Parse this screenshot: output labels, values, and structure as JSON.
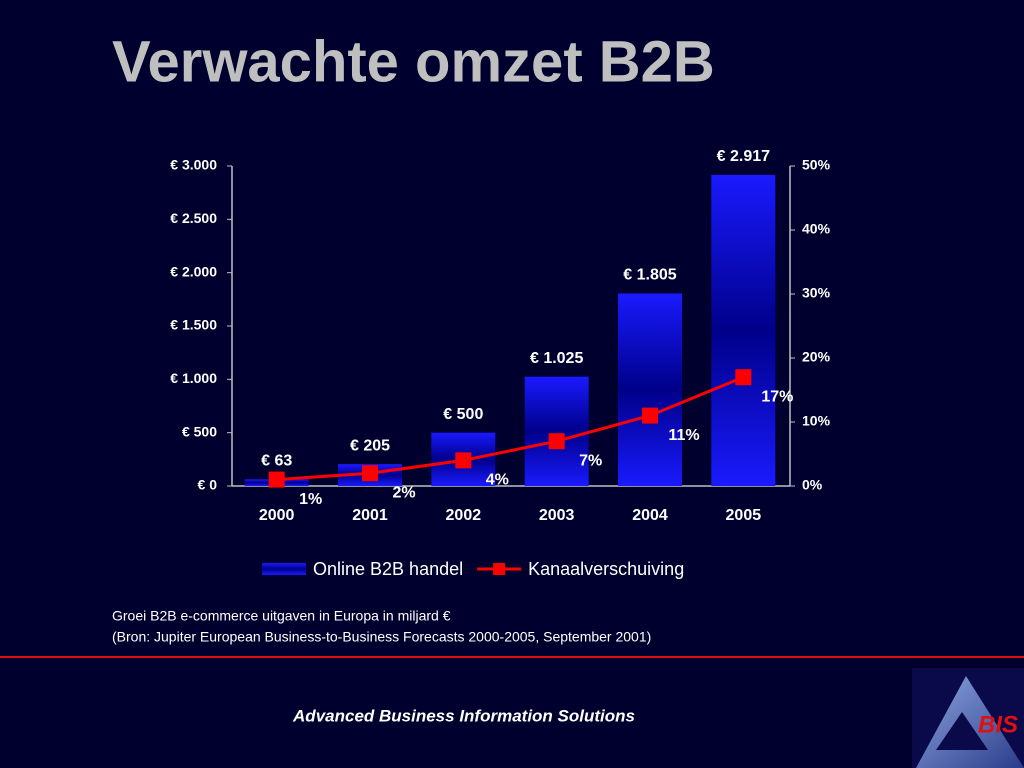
{
  "chart_data": {
    "type": "bar",
    "title": "Verwachte omzet B2B",
    "categories": [
      "2000",
      "2001",
      "2002",
      "2003",
      "2004",
      "2005"
    ],
    "series": [
      {
        "name": "Online B2B handel",
        "type": "bar",
        "color": "#1a1aff",
        "values": [
          63,
          205,
          500,
          1025,
          1805,
          2917
        ],
        "value_labels": [
          "€ 63",
          "€ 205",
          "€ 500",
          "€ 1.025",
          "€ 1.805",
          "€ 2.917"
        ]
      },
      {
        "name": "Kanaalverschuiving",
        "type": "line",
        "axis": "y2",
        "color": "#ff0000",
        "values": [
          1,
          2,
          4,
          7,
          11,
          17
        ],
        "value_labels": [
          "1%",
          "2%",
          "4%",
          "7%",
          "11%",
          "17%"
        ]
      }
    ],
    "ylim": [
      0,
      3000
    ],
    "yticks": [
      {
        "value": 0,
        "label": "€ 0"
      },
      {
        "value": 500,
        "label": "€ 500"
      },
      {
        "value": 1000,
        "label": "€ 1.000"
      },
      {
        "value": 1500,
        "label": "€ 1.500"
      },
      {
        "value": 2000,
        "label": "€ 2.000"
      },
      {
        "value": 2500,
        "label": "€ 2.500"
      },
      {
        "value": 3000,
        "label": "€ 3.000"
      }
    ],
    "y2lim": [
      0,
      50
    ],
    "y2ticks": [
      {
        "value": 0,
        "label": "0%"
      },
      {
        "value": 10,
        "label": "10%"
      },
      {
        "value": 20,
        "label": "20%"
      },
      {
        "value": 30,
        "label": "30%"
      },
      {
        "value": 40,
        "label": "40%"
      },
      {
        "value": 50,
        "label": "50%"
      }
    ],
    "grid": false,
    "legend": "bottom",
    "caption": [
      "Groei B2B e-commerce uitgaven in Europa in miljard €",
      "(Bron: Jupiter European Business-to-Business Forecasts 2000-2005, September 2001)"
    ]
  },
  "footer": "Advanced Business Information Solutions",
  "logo": "BIS"
}
